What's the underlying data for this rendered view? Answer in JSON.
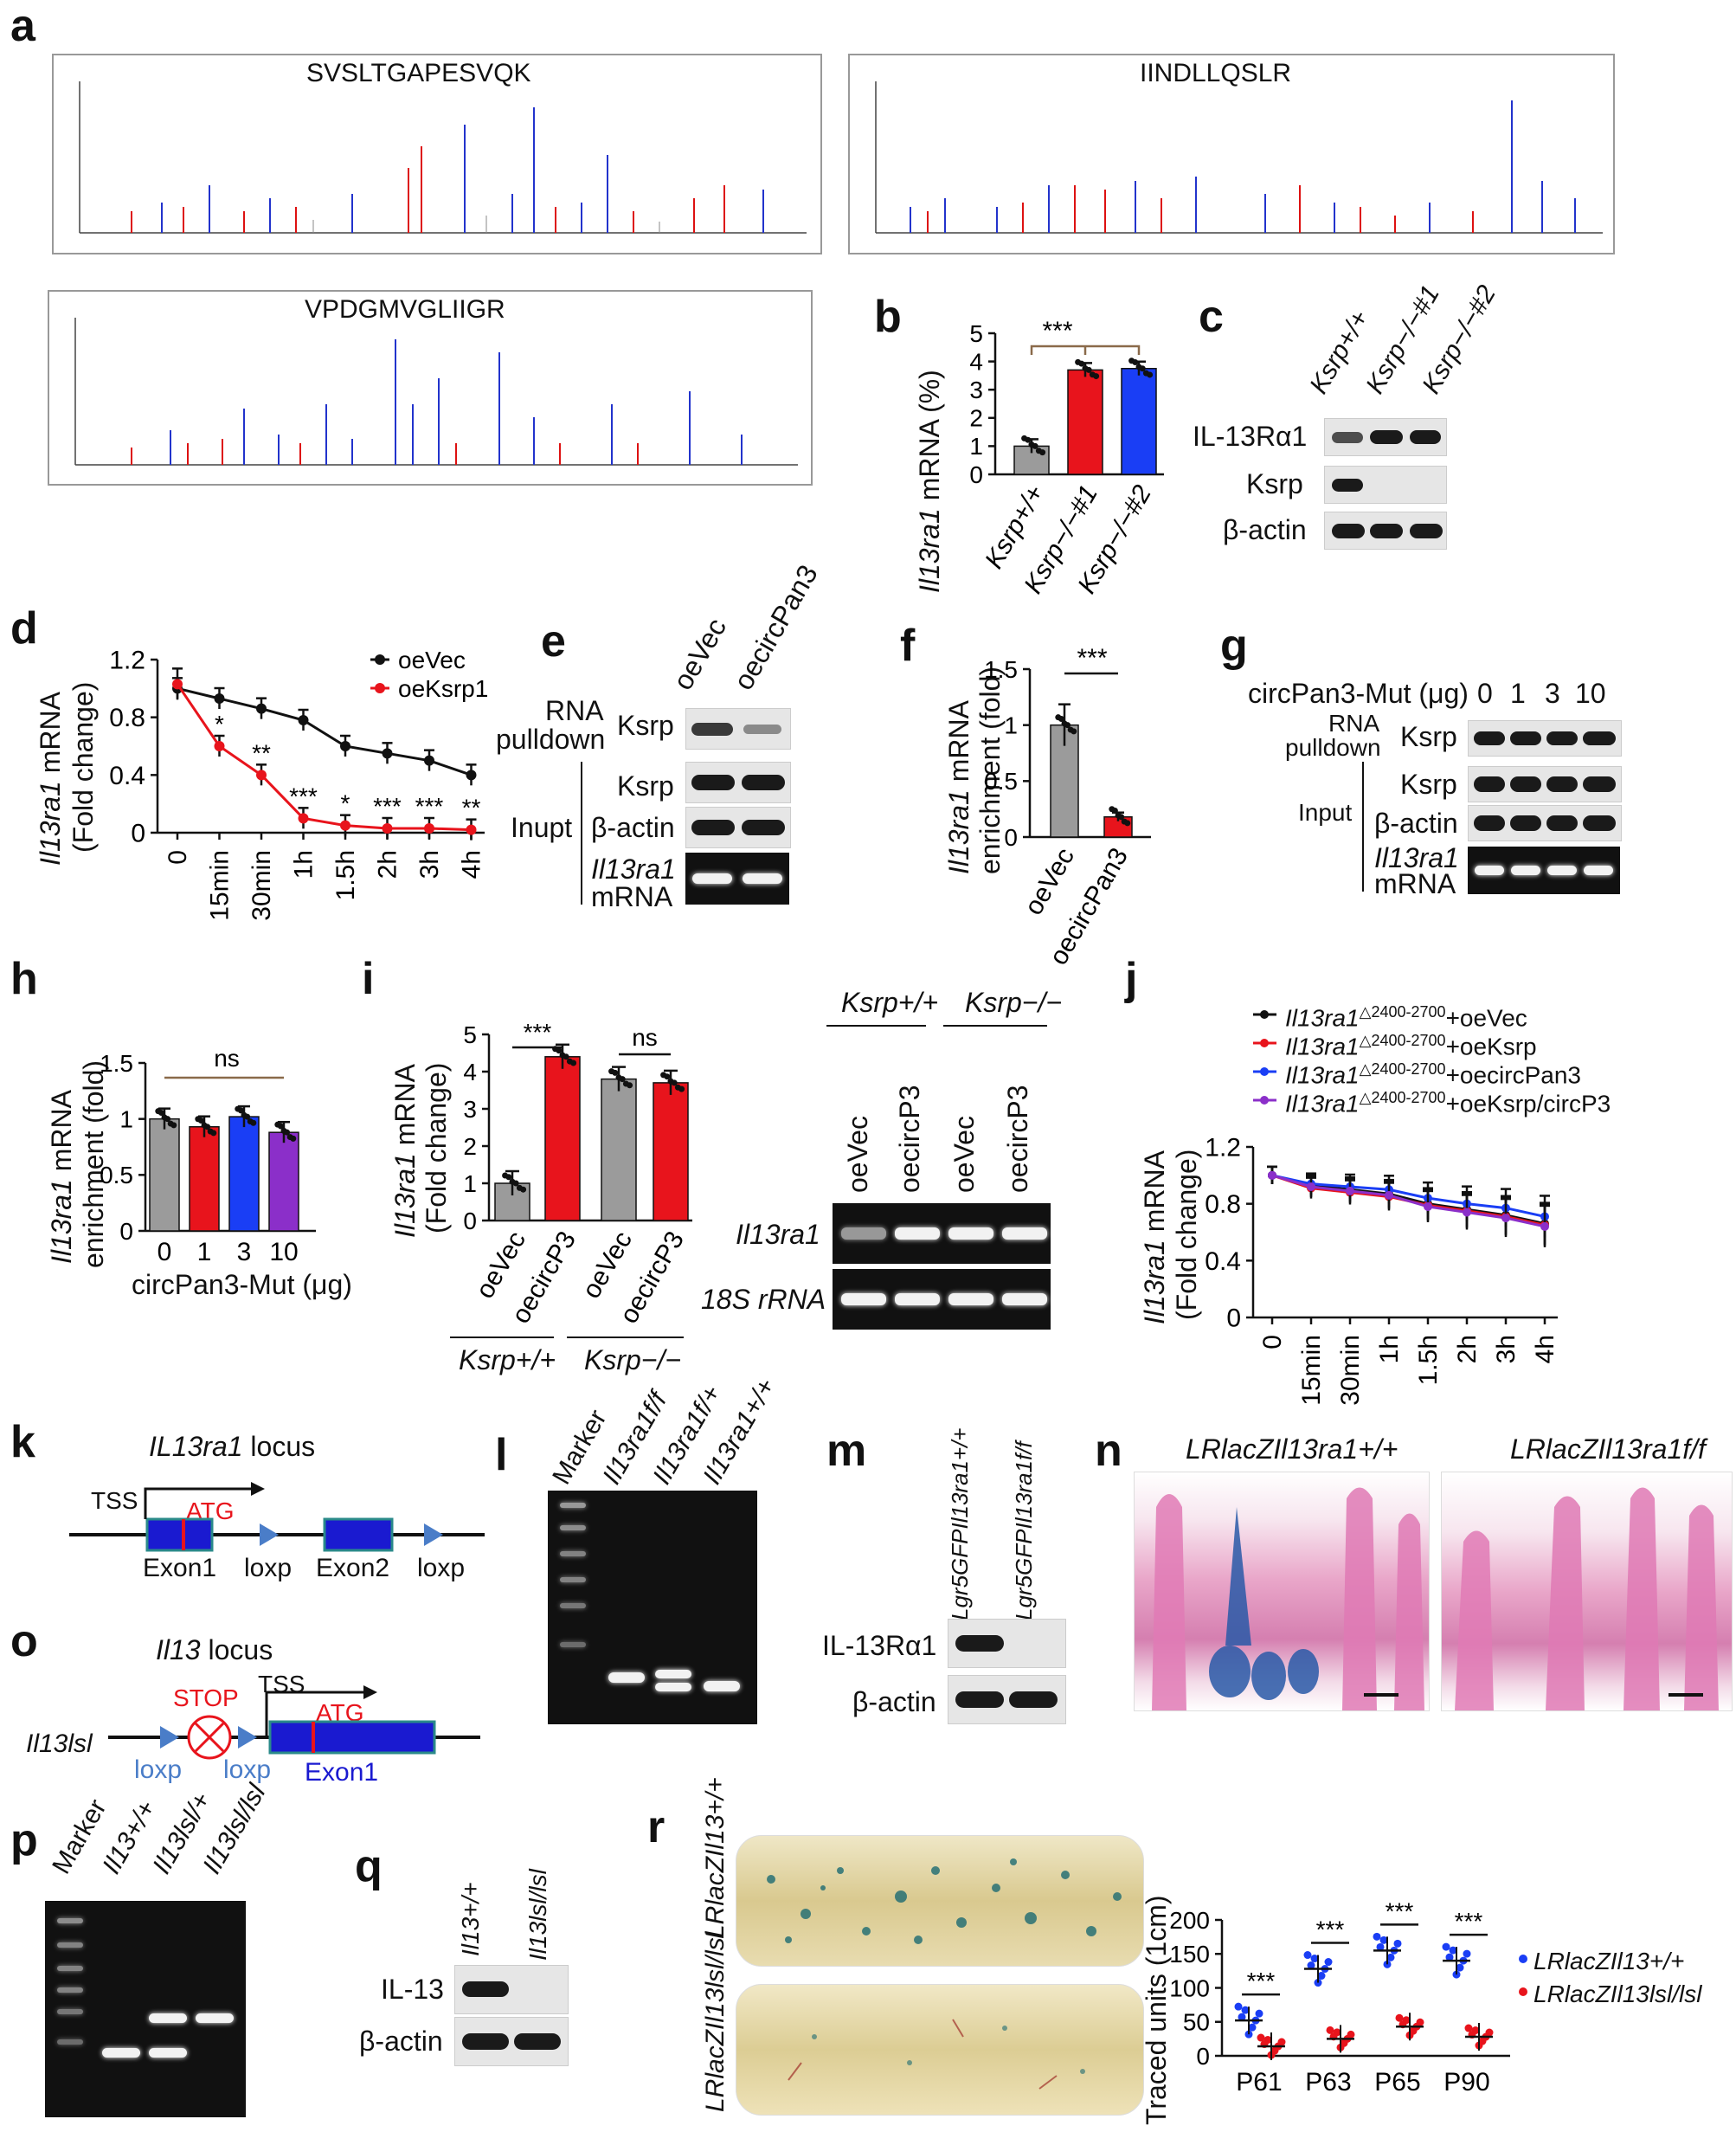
{
  "colors": {
    "grey": "#9b9b9b",
    "red": "#e8141c",
    "blue": "#1a3ef5",
    "purple": "#8b2fc9",
    "black": "#111111",
    "dark_line": "#222222"
  },
  "panels": {
    "a": {
      "label": "a",
      "peptides": [
        "SVSLTGAPESVQK",
        "IINDLLQSLR",
        "VPDGMVGLIIGR"
      ]
    },
    "b": {
      "label": "b",
      "ylabel_gene": "Il13ra1",
      "ylabel_rest": " mRNA (%)",
      "sig": "***",
      "chart_data": {
        "type": "bar",
        "categories": [
          "Ksrp+/+",
          "Ksrp−/−#1",
          "Ksrp−/−#2"
        ],
        "values": [
          1.0,
          3.7,
          3.75
        ],
        "ylim": [
          0,
          5
        ],
        "yticks": [
          "0",
          "1",
          "2",
          "3",
          "4",
          "5"
        ]
      }
    },
    "c": {
      "label": "c",
      "lanes": [
        "Ksrp+/+",
        "Ksrp−/−#1",
        "Ksrp−/−#2"
      ],
      "rows": [
        "IL-13Rα1",
        "Ksrp",
        "β-actin"
      ]
    },
    "d": {
      "label": "d",
      "ylabel_gene": "Il13ra1",
      "ylabel_rest": " mRNA",
      "ylabel2": "(Fold change)",
      "chart_data": {
        "type": "line",
        "x": [
          "0",
          "15min",
          "30min",
          "1h",
          "1.5h",
          "2h",
          "3h",
          "4h"
        ],
        "series": [
          {
            "name": "oeVec",
            "values": [
              1.0,
              0.93,
              0.86,
              0.78,
              0.6,
              0.55,
              0.5,
              0.4
            ]
          },
          {
            "name": "oeKsrp1",
            "values": [
              1.03,
              0.6,
              0.4,
              0.1,
              0.05,
              0.03,
              0.03,
              0.02
            ]
          }
        ],
        "ylim": [
          0,
          1.2
        ],
        "yticks": [
          "0",
          "0.4",
          "0.8",
          "1.2"
        ],
        "sig": [
          "",
          "*",
          "**",
          "***",
          "*",
          "***",
          "***",
          "**"
        ]
      }
    },
    "e": {
      "label": "e",
      "lanes": [
        "oeVec",
        "oecircPan3"
      ],
      "group1": "RNA",
      "group1b": "pulldown",
      "group2": "Inupt",
      "rows": [
        "Ksrp",
        "Ksrp",
        "β-actin",
        "Il13ra1",
        "mRNA"
      ]
    },
    "f": {
      "label": "f",
      "ylabel_gene": "Il13ra1",
      "ylabel_rest": " mRNA",
      "ylabel2": "enrichment (fold)",
      "sig": "***",
      "chart_data": {
        "type": "bar",
        "categories": [
          "oeVec",
          "oecircPan3"
        ],
        "values": [
          1.0,
          0.18
        ],
        "ylim": [
          0,
          1.5
        ],
        "yticks": [
          "0",
          "0.5",
          "1",
          "1.5"
        ]
      }
    },
    "g": {
      "label": "g",
      "title": "circPan3-Mut (μg)",
      "lanes": [
        "0",
        "1",
        "3",
        "10"
      ],
      "group1": "RNA",
      "group1b": "pulldown",
      "group2": "Input",
      "rows": [
        "Ksrp",
        "Ksrp",
        "β-actin",
        "Il13ra1",
        "mRNA"
      ]
    },
    "h": {
      "label": "h",
      "ylabel_gene": "Il13ra1",
      "ylabel_rest": " mRNA",
      "ylabel2": "enrichment (fold)",
      "xlabel": "circPan3-Mut (μg)",
      "sig": "ns",
      "chart_data": {
        "type": "bar",
        "categories": [
          "0",
          "1",
          "3",
          "10"
        ],
        "values": [
          1.0,
          0.93,
          1.02,
          0.88
        ],
        "ylim": [
          0,
          1.5
        ],
        "yticks": [
          "0",
          "0.5",
          "1",
          "1.5"
        ]
      }
    },
    "i": {
      "label": "i",
      "ylabel_gene": "Il13ra1",
      "ylabel_rest": " mRNA",
      "ylabel2": "(Fold change)",
      "sig1": "***",
      "sig2": "ns",
      "groups": [
        "Ksrp+/+",
        "Ksrp−/−"
      ],
      "chart_data": {
        "type": "bar",
        "categories": [
          "oeVec",
          "oecircP3",
          "oeVec",
          "oecircP3"
        ],
        "values": [
          1.0,
          4.4,
          3.8,
          3.7
        ],
        "ylim": [
          0,
          5
        ],
        "yticks": [
          "0",
          "1",
          "2",
          "3",
          "4",
          "5"
        ]
      },
      "gel_lanes": [
        "oeVec",
        "oecircP3",
        "oeVec",
        "oecircP3"
      ],
      "gel_rows": [
        "Il13ra1",
        "18S rRNA"
      ]
    },
    "j": {
      "label": "j",
      "ylabel_gene": "Il13ra1",
      "ylabel_rest": " mRNA",
      "ylabel2": "(Fold change)",
      "legend": [
        {
          "gene": "Il13ra1",
          "sup": "△2400-2700",
          "rest": "+oeVec"
        },
        {
          "gene": "Il13ra1",
          "sup": "△2400-2700",
          "rest": "+oeKsrp"
        },
        {
          "gene": "Il13ra1",
          "sup": "△2400-2700",
          "rest": "+oecircPan3"
        },
        {
          "gene": "Il13ra1",
          "sup": "△2400-2700",
          "rest": "+oeKsrp/circP3"
        }
      ],
      "chart_data": {
        "type": "line",
        "x": [
          "0",
          "15min",
          "30min",
          "1h",
          "1.5h",
          "2h",
          "3h",
          "4h"
        ],
        "series": [
          {
            "values": [
              1.0,
              0.93,
              0.9,
              0.87,
              0.8,
              0.76,
              0.72,
              0.66
            ]
          },
          {
            "values": [
              1.0,
              0.91,
              0.88,
              0.85,
              0.79,
              0.75,
              0.71,
              0.65
            ]
          },
          {
            "values": [
              1.0,
              0.94,
              0.92,
              0.9,
              0.84,
              0.8,
              0.77,
              0.71
            ]
          },
          {
            "values": [
              1.0,
              0.92,
              0.89,
              0.86,
              0.78,
              0.74,
              0.7,
              0.64
            ]
          }
        ],
        "ylim": [
          0,
          1.2
        ],
        "yticks": [
          "0",
          "0.4",
          "0.8",
          "1.2"
        ]
      }
    },
    "k": {
      "label": "k",
      "title_gene": "IL13ra1",
      "title_rest": " locus",
      "tss": "TSS",
      "atg": "ATG",
      "exon1": "Exon1",
      "exon2": "Exon2",
      "loxp1": "loxp",
      "loxp2": "loxp"
    },
    "l": {
      "label": "l",
      "lanes": [
        "Marker",
        "Il13ra1f/f",
        "Il13ra1f/+",
        "Il13ra1+/+"
      ]
    },
    "m": {
      "label": "m",
      "lanes": [
        "Lgr5GFPIl13ra1+/+",
        "Lgr5GFPIl13ra1f/f"
      ],
      "rows": [
        "IL-13Rα1",
        "β-actin"
      ]
    },
    "n": {
      "label": "n",
      "titles": [
        "LRlacZIl13ra1+/+",
        "LRlacZIl13ra1f/f"
      ]
    },
    "o": {
      "label": "o",
      "title_gene": "Il13",
      "title_rest": " locus",
      "allele": "Il13lsl",
      "stop": "STOP",
      "tss": "TSS",
      "atg": "ATG",
      "loxp1": "loxp",
      "loxp2": "loxp",
      "exon1": "Exon1"
    },
    "p": {
      "label": "p",
      "lanes": [
        "Marker",
        "Il13+/+",
        "Il13lsl/+",
        "Il13lsl/lsl"
      ]
    },
    "q": {
      "label": "q",
      "lanes": [
        "Il13+/+",
        "Il13lsl/lsl"
      ],
      "rows": [
        "IL-13",
        "β-actin"
      ]
    },
    "r": {
      "label": "r",
      "image_labels": [
        "LRlacZIl13+/+",
        "LRlacZIl13lsl/lsl"
      ],
      "ylabel": "Traced units (1cm)",
      "legend": [
        "LRlacZIl13+/+",
        "LRlacZIl13lsl/lsl"
      ],
      "sig": "***",
      "chart_data": {
        "type": "scatter",
        "categories": [
          "P61",
          "P63",
          "P65",
          "P90"
        ],
        "series": [
          {
            "values": [
              52,
              128,
              155,
              140
            ]
          },
          {
            "values": [
              14,
              25,
              43,
              28
            ]
          }
        ],
        "ylim": [
          0,
          200
        ],
        "yticks": [
          "0",
          "50",
          "100",
          "150",
          "200"
        ]
      }
    }
  }
}
